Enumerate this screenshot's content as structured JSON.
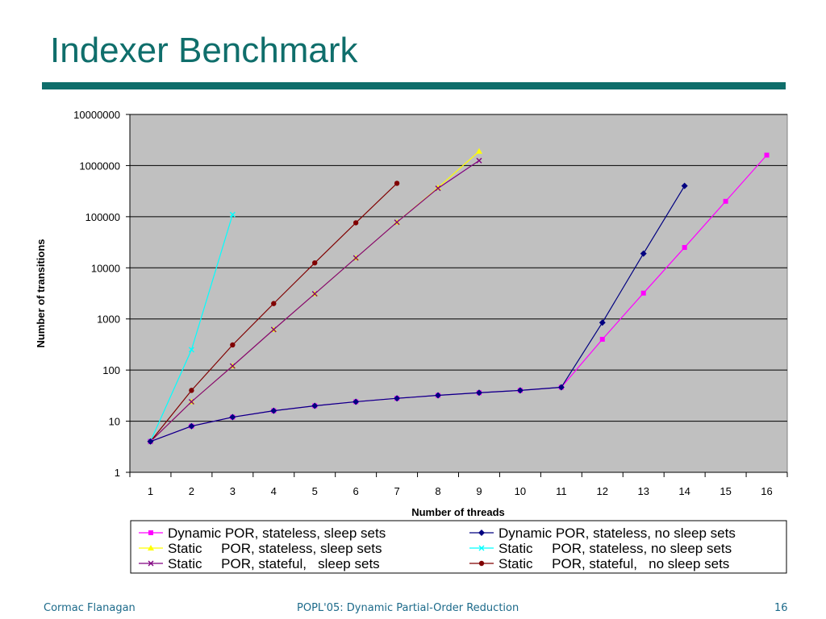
{
  "slide": {
    "title": "Indexer Benchmark",
    "footer_left": "Cormac Flanagan",
    "footer_center": "POPL'05: Dynamic Partial-Order Reduction",
    "page_number": "16",
    "accent_color": "#0f6e6b"
  },
  "chart_data": {
    "type": "line",
    "title": "",
    "xlabel": "Number of threads",
    "ylabel": "Number of transitions",
    "yscale": "log",
    "ylim": [
      1,
      10000000
    ],
    "grid": true,
    "plot_background": "#c0c0c0",
    "legend_position": "bottom",
    "categories": [
      "1",
      "2",
      "3",
      "4",
      "5",
      "6",
      "7",
      "8",
      "9",
      "10",
      "11",
      "12",
      "13",
      "14",
      "15",
      "16"
    ],
    "y_ticks": [
      "1",
      "10",
      "100",
      "1000",
      "10000",
      "100000",
      "1000000",
      "10000000"
    ],
    "series": [
      {
        "name": "Dynamic POR, stateless, sleep sets",
        "color": "#ff00ff",
        "marker": "square",
        "x": [
          1,
          2,
          3,
          4,
          5,
          6,
          7,
          8,
          9,
          10,
          11,
          12,
          13,
          14,
          15,
          16
        ],
        "y": [
          4,
          8,
          12,
          16,
          20,
          24,
          28,
          32,
          36,
          40,
          46,
          400,
          3200,
          25000,
          200000,
          1600000
        ]
      },
      {
        "name": "Dynamic POR, stateless, no sleep sets",
        "color": "#000080",
        "marker": "diamond",
        "x": [
          1,
          2,
          3,
          4,
          5,
          6,
          7,
          8,
          9,
          10,
          11,
          12,
          13,
          14
        ],
        "y": [
          4,
          8,
          12,
          16,
          20,
          24,
          28,
          32,
          36,
          40,
          46,
          850,
          19000,
          400000
        ]
      },
      {
        "name": "Static     POR, stateless, sleep sets",
        "color": "#ffff00",
        "marker": "triangle",
        "x": [
          1,
          2,
          3,
          4,
          5,
          6,
          7,
          8,
          9
        ],
        "y": [
          4,
          24,
          120,
          620,
          3100,
          15600,
          78000,
          370000,
          1900000
        ]
      },
      {
        "name": "Static     POR, stateless, no sleep sets",
        "color": "#00ffff",
        "marker": "x",
        "x": [
          1,
          2,
          3
        ],
        "y": [
          4,
          250,
          110000
        ]
      },
      {
        "name": "Static     POR, stateful,   sleep sets",
        "color": "#800080",
        "marker": "x",
        "x": [
          1,
          2,
          3,
          4,
          5,
          6,
          7,
          8,
          9
        ],
        "y": [
          4,
          24,
          120,
          620,
          3100,
          15600,
          78000,
          360000,
          1250000
        ]
      },
      {
        "name": "Static     POR, stateful,   no sleep sets",
        "color": "#800000",
        "marker": "circle",
        "x": [
          1,
          2,
          3,
          4,
          5,
          6,
          7
        ],
        "y": [
          4,
          40,
          310,
          2000,
          12500,
          76000,
          450000
        ]
      }
    ]
  }
}
